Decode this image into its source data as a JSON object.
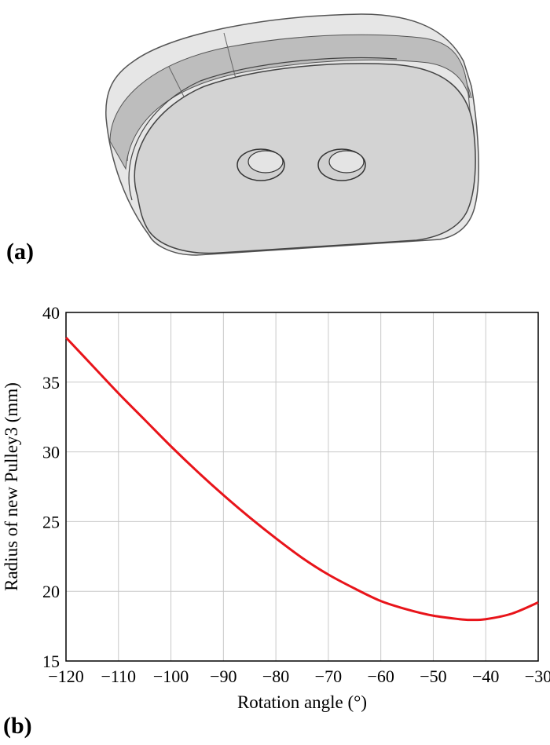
{
  "panels": {
    "a_label": "(a)",
    "b_label": "(b)"
  },
  "colors": {
    "curve": "#e8141a",
    "grid": "#c8c8c8",
    "pulley_face": "#d3d3d3",
    "pulley_rim": "#e6e6e6",
    "pulley_edge": "#555555"
  },
  "chart_data": {
    "type": "line",
    "title": "",
    "xlabel": "Rotation angle (°)",
    "ylabel": "Radius of new Pulley3 (mm)",
    "xlim": [
      -120,
      -30
    ],
    "ylim": [
      15,
      40
    ],
    "xticks": [
      -120,
      -110,
      -100,
      -90,
      -80,
      -70,
      -60,
      -50,
      -40,
      -30
    ],
    "yticks": [
      15,
      20,
      25,
      30,
      35,
      40
    ],
    "grid": true,
    "legend": "none",
    "series": [
      {
        "x": [
          -120,
          -115,
          -110,
          -105,
          -100,
          -95,
          -90,
          -85,
          -80,
          -75,
          -70,
          -65,
          -60,
          -55,
          -50,
          -45,
          -43,
          -40,
          -35,
          -30
        ],
        "y": [
          38.2,
          36.2,
          34.2,
          32.3,
          30.4,
          28.6,
          26.9,
          25.3,
          23.8,
          22.4,
          21.2,
          20.2,
          19.3,
          18.7,
          18.25,
          18.0,
          17.95,
          18.0,
          18.4,
          19.2
        ]
      }
    ]
  }
}
